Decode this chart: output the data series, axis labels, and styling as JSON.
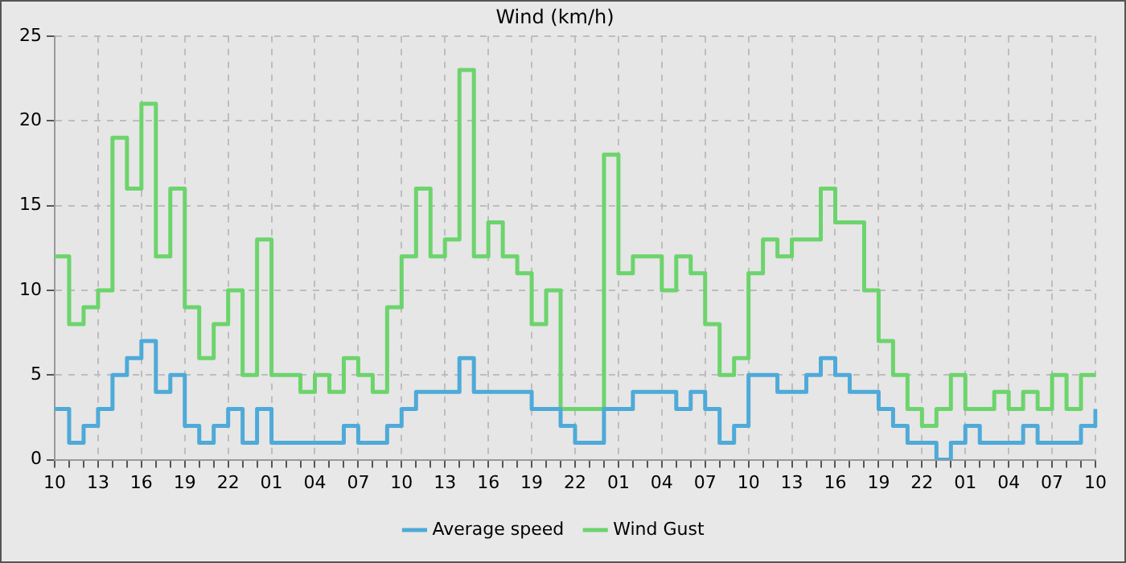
{
  "chart_data": {
    "type": "step",
    "title": "Wind (km/h)",
    "categories": [
      "10",
      null,
      null,
      "13",
      null,
      null,
      "16",
      null,
      null,
      "19",
      null,
      null,
      "22",
      null,
      null,
      "01",
      null,
      null,
      "04",
      null,
      null,
      "07",
      null,
      null,
      "10",
      null,
      null,
      "13",
      null,
      null,
      "16",
      null,
      null,
      "19",
      null,
      null,
      "22",
      null,
      null,
      "01",
      null,
      null,
      "04",
      null,
      null,
      "07",
      null,
      null,
      "10",
      null,
      null,
      "13",
      null,
      null,
      "16",
      null,
      null,
      "19",
      null,
      null,
      "22",
      null,
      null,
      "01",
      null,
      null,
      "04",
      null,
      null,
      "07",
      null,
      null,
      "10"
    ],
    "series": [
      {
        "name": "Average speed",
        "color": "#4eaad8",
        "values": [
          3,
          1,
          2,
          3,
          5,
          6,
          7,
          4,
          5,
          2,
          1,
          2,
          3,
          1,
          3,
          1,
          1,
          1,
          1,
          1,
          2,
          1,
          1,
          2,
          3,
          4,
          4,
          4,
          6,
          4,
          4,
          4,
          4,
          3,
          3,
          2,
          1,
          1,
          3,
          3,
          4,
          4,
          4,
          3,
          4,
          3,
          1,
          2,
          5,
          5,
          4,
          4,
          5,
          6,
          5,
          4,
          4,
          3,
          2,
          1,
          1,
          0,
          1,
          2,
          1,
          1,
          1,
          2,
          1,
          1,
          1,
          2,
          3
        ]
      },
      {
        "name": "Wind Gust",
        "color": "#6cd46c",
        "values": [
          12,
          8,
          9,
          10,
          19,
          16,
          21,
          12,
          16,
          9,
          6,
          8,
          10,
          5,
          13,
          5,
          5,
          4,
          5,
          4,
          6,
          5,
          4,
          9,
          12,
          16,
          12,
          13,
          23,
          12,
          14,
          12,
          11,
          8,
          10,
          3,
          3,
          3,
          18,
          11,
          12,
          12,
          10,
          12,
          11,
          8,
          5,
          6,
          11,
          13,
          12,
          13,
          13,
          16,
          14,
          14,
          10,
          7,
          5,
          3,
          2,
          3,
          5,
          3,
          3,
          4,
          3,
          4,
          3,
          5,
          3,
          5,
          5
        ]
      }
    ],
    "ylim": [
      0,
      25
    ],
    "yticks": [
      0,
      5,
      10,
      15,
      20,
      25
    ],
    "grid": true,
    "legend": "bottom",
    "marker": "none",
    "line_style": "solid"
  }
}
